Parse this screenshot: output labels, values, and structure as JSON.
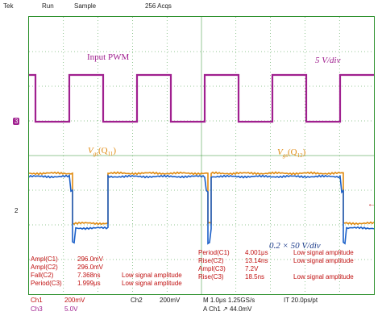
{
  "status_bar": {
    "brand": "Tek",
    "run_state": "Run",
    "mode": "Sample",
    "acquisitions": "256 Acqs"
  },
  "annotations": {
    "input_pwm": "Input PWM",
    "scale_top": "5 V/div",
    "vgs_left": "V",
    "vgs_left_sub": "gs",
    "vgs_left_q": "(Q",
    "vgs_left_q_sub": "11",
    "vgs_right": "V",
    "vgs_right_sub": "gs",
    "vgs_right_q": "(Q",
    "vgs_right_q_sub": "12",
    "scale_bottom": "0.2 × 50 V/div"
  },
  "markers": {
    "ch3": "3",
    "ch2": "2",
    "trigger_arrow": "←"
  },
  "measurements": {
    "left": [
      {
        "label": "Ampl(C1)",
        "value": "296.0mV",
        "note": ""
      },
      {
        "label": "Ampl(C2)",
        "value": "296.0mV",
        "note": ""
      },
      {
        "label": "Fall(C2)",
        "value": "7.368ns",
        "note": "Low signal amplitude"
      },
      {
        "label": "Period(C3)",
        "value": "1.999μs",
        "note": "Low signal amplitude"
      }
    ],
    "right": [
      {
        "label": "Period(C1)",
        "value": "4.001μs",
        "note": "Low signal amplitude"
      },
      {
        "label": "Rise(C2)",
        "value": "13.14ns",
        "note": "Low signal amplitude"
      },
      {
        "label": "Ampl(C3)",
        "value": "7.2V",
        "note": ""
      },
      {
        "label": "Rise(C3)",
        "value": "18.5ns",
        "note": "Low signal amplitude"
      }
    ]
  },
  "bottom_bar": {
    "ch1": "Ch1",
    "ch1_scale": "200mV",
    "ch2": "Ch2",
    "ch2_scale": "200mV",
    "ch3": "Ch3",
    "ch3_scale": "5.0V",
    "timebase": "M 1.0μs 1.25GS/s",
    "resolution": "IT 20.0ps/pt",
    "trigger": "A Ch1 ↗ 44.0mV"
  },
  "colors": {
    "pwm": "#a0208f",
    "ch1": "#e08a10",
    "ch2": "#1a5fc8",
    "grid": "#2a8f2a",
    "meas": "#c01010"
  }
}
